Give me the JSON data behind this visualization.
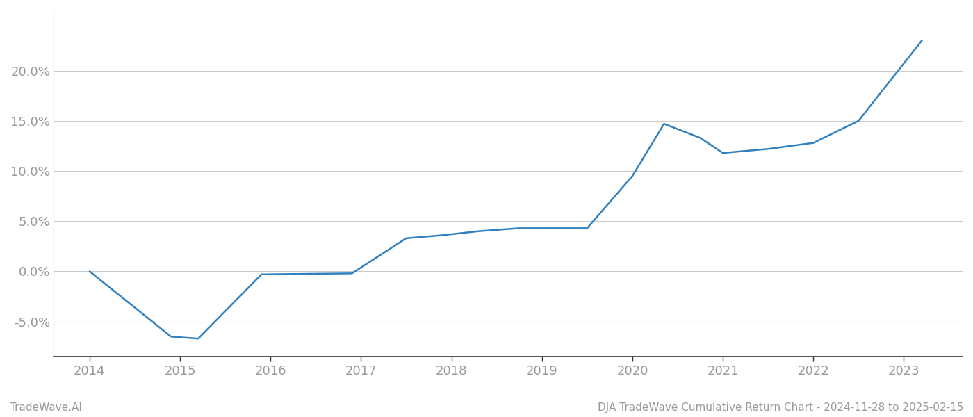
{
  "x_values": [
    2014.0,
    2014.9,
    2015.2,
    2015.9,
    2016.9,
    2017.5,
    2017.9,
    2018.3,
    2018.75,
    2019.5,
    2020.0,
    2020.35,
    2020.75,
    2021.0,
    2021.5,
    2022.0,
    2022.5,
    2023.2
  ],
  "y_values": [
    0.0,
    -6.5,
    -6.7,
    -0.3,
    -0.2,
    3.3,
    3.6,
    4.0,
    4.3,
    4.3,
    9.5,
    14.7,
    13.3,
    11.8,
    12.2,
    12.8,
    15.0,
    23.0
  ],
  "line_color": "#3080c0",
  "line_width": 1.8,
  "background_color": "#ffffff",
  "grid_color": "#cccccc",
  "ytick_values": [
    -5.0,
    0.0,
    5.0,
    10.0,
    15.0,
    20.0
  ],
  "xtick_values": [
    2014,
    2015,
    2016,
    2017,
    2018,
    2019,
    2020,
    2021,
    2022,
    2023
  ],
  "xtick_labels": [
    "2014",
    "2015",
    "2016",
    "2017",
    "2018",
    "2019",
    "2020",
    "2021",
    "2022",
    "2023"
  ],
  "xlim": [
    2013.6,
    2023.65
  ],
  "ylim": [
    -8.5,
    26.0
  ],
  "footer_left": "TradeWave.AI",
  "footer_right": "DJA TradeWave Cumulative Return Chart - 2024-11-28 to 2025-02-15",
  "tick_label_color": "#999999",
  "footer_color": "#999999",
  "footer_fontsize": 11,
  "tick_fontsize": 13
}
